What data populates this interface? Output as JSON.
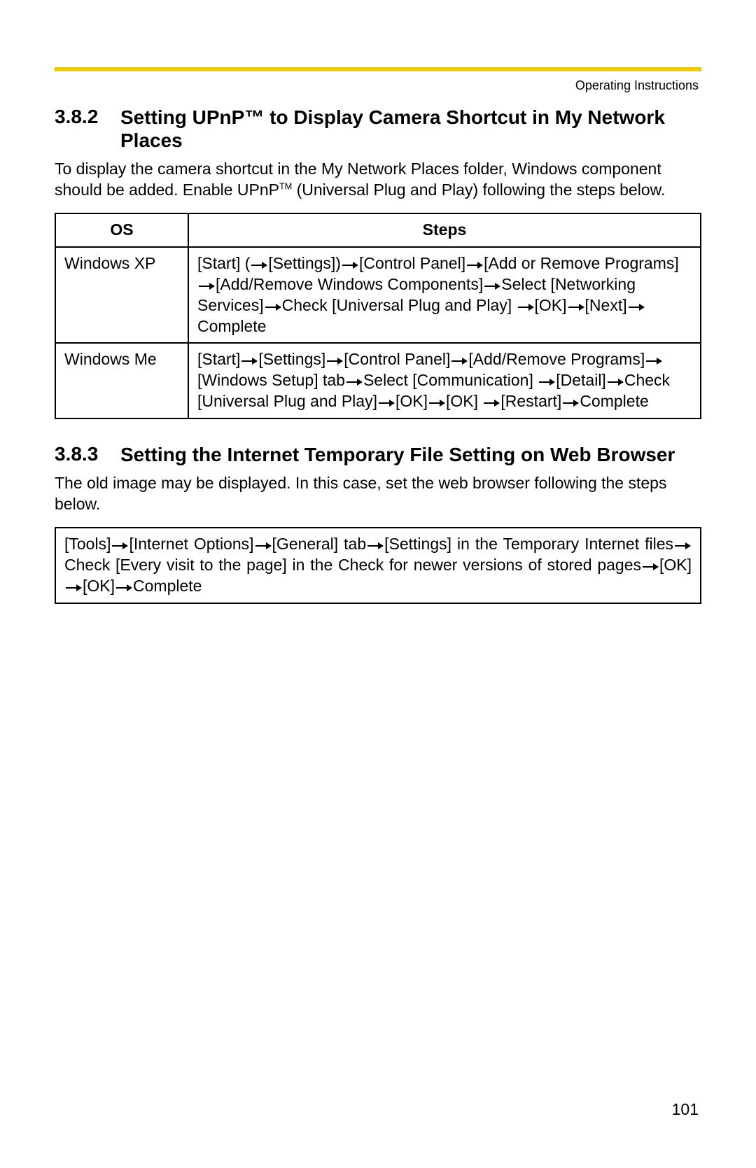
{
  "accent_color": "#f0c800",
  "header_text": "Operating Instructions",
  "section1": {
    "num": "3.8.2",
    "title_line": "Setting UPnP™ to Display Camera Shortcut in My Network Places",
    "intro_pre": "To display the camera shortcut in the My Network Places folder, Windows component should be added. Enable UPnP",
    "intro_post": " (Universal Plug and Play) following the steps below."
  },
  "table": {
    "columns": [
      "OS",
      "Steps"
    ],
    "rows": [
      {
        "os": "Windows XP",
        "steps": [
          "[Start] (",
          "A",
          "[Settings])",
          "A",
          "[Control Panel]",
          "A",
          "[Add or Remove Programs]",
          "A",
          "[Add/Remove Windows Components]",
          "A",
          "Select [Networking Services]",
          "A",
          "Check [Universal Plug and Play] ",
          "A",
          "[OK]",
          "A",
          "[Next]",
          "A",
          "Complete"
        ]
      },
      {
        "os": "Windows Me",
        "steps": [
          "[Start]",
          "A",
          "[Settings]",
          "A",
          "[Control Panel]",
          "A",
          "[Add/Remove Programs]",
          "A",
          "[Windows Setup] tab",
          "A",
          "Select [Communication] ",
          "A",
          "[Detail]",
          "A",
          "Check [Universal Plug and Play]",
          "A",
          "[OK]",
          "A",
          "[OK] ",
          "A",
          "[Restart]",
          "A",
          "Complete"
        ]
      }
    ]
  },
  "section2": {
    "num": "3.8.3",
    "title_line": "Setting the Internet Temporary File Setting on Web Browser",
    "intro": "The old image may be displayed. In this case, set the web browser following the steps below.",
    "box": [
      "[Tools]",
      "A",
      "[Internet Options]",
      "A",
      "[General] tab",
      "A",
      "[Settings] in the Temporary Internet files",
      "A",
      "Check [Every visit to the page] in the Check for newer versions of stored pages",
      "A",
      "[OK]",
      "A",
      "[OK]",
      "A",
      "Complete"
    ]
  },
  "page_number": "101",
  "arrow_svg": {
    "width": 24,
    "height": 14,
    "color": "#000000"
  }
}
